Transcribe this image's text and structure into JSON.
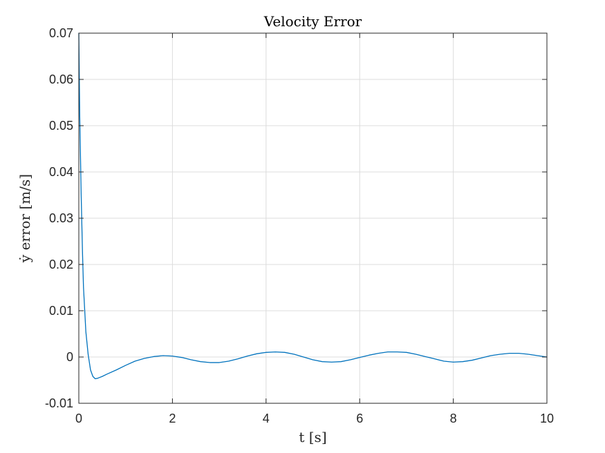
{
  "chart_data": {
    "type": "line",
    "title": "Velocity Error",
    "xlabel": "t [s]",
    "ylabel": "ẏ error [m/s]",
    "xlim": [
      0,
      10
    ],
    "ylim": [
      -0.01,
      0.07
    ],
    "xticks": [
      0,
      2,
      4,
      6,
      8,
      10
    ],
    "yticks": [
      -0.01,
      0,
      0.01,
      0.02,
      0.03,
      0.04,
      0.05,
      0.06,
      0.07
    ],
    "xtick_labels": [
      "0",
      "2",
      "4",
      "6",
      "8",
      "10"
    ],
    "ytick_labels": [
      "-0.01",
      "0",
      "0.01",
      "0.02",
      "0.03",
      "0.04",
      "0.05",
      "0.06",
      "0.07"
    ],
    "grid": true,
    "series": [
      {
        "color": "#0072BD",
        "x": [
          0,
          0.02,
          0.05,
          0.08,
          0.1,
          0.15,
          0.2,
          0.25,
          0.3,
          0.35,
          0.4,
          0.5,
          0.6,
          0.8,
          1.0,
          1.2,
          1.4,
          1.6,
          1.8,
          2.0,
          2.2,
          2.4,
          2.6,
          2.8,
          3.0,
          3.2,
          3.4,
          3.6,
          3.8,
          4.0,
          4.2,
          4.4,
          4.6,
          4.8,
          5.0,
          5.2,
          5.4,
          5.6,
          5.8,
          6.0,
          6.2,
          6.4,
          6.6,
          6.8,
          7.0,
          7.2,
          7.4,
          7.6,
          7.8,
          8.0,
          8.2,
          8.4,
          8.6,
          8.8,
          9.0,
          9.2,
          9.4,
          9.6,
          9.8,
          10.0
        ],
        "y": [
          0.07,
          0.052,
          0.035,
          0.022,
          0.015,
          0.0055,
          0.0005,
          -0.0028,
          -0.0042,
          -0.0047,
          -0.0046,
          -0.0042,
          -0.0037,
          -0.0028,
          -0.0018,
          -0.0009,
          -0.0003,
          0.0001,
          0.0003,
          0.0002,
          -0.0001,
          -0.0006,
          -0.001,
          -0.0012,
          -0.0012,
          -0.0009,
          -0.0004,
          0.0002,
          0.0007,
          0.001,
          0.0011,
          0.001,
          0.0006,
          0.0,
          -0.0006,
          -0.001,
          -0.0011,
          -0.001,
          -0.0006,
          -0.0001,
          0.0004,
          0.0008,
          0.0011,
          0.0011,
          0.001,
          0.0006,
          0.0001,
          -0.0004,
          -0.0009,
          -0.0011,
          -0.001,
          -0.0007,
          -0.0002,
          0.0003,
          0.0006,
          0.0008,
          0.0008,
          0.0006,
          0.0003,
          0.0
        ]
      }
    ]
  }
}
